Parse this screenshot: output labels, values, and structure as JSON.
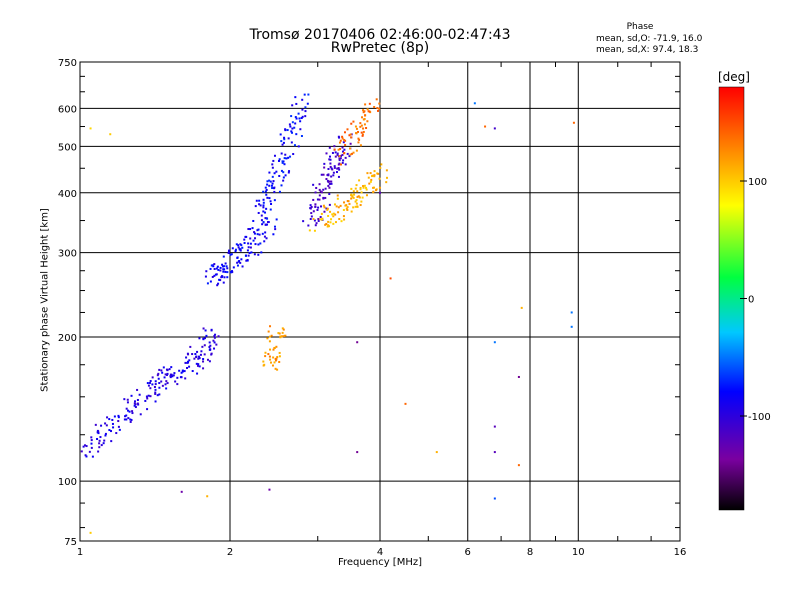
{
  "chart_data": {
    "type": "scatter",
    "title": "Tromsø 20170406 02:46:00-02:47:43",
    "subtitle": "RwPretec (8p)",
    "xlabel": "Frequency [MHz]",
    "ylabel": "Stationary phase Virtual Height [km]",
    "xscale": "log",
    "yscale": "log",
    "xlim": [
      1,
      16
    ],
    "ylim": [
      75,
      750
    ],
    "xticks": [
      1,
      2,
      4,
      6,
      8,
      10,
      16
    ],
    "xtick_labels": [
      "1",
      "2",
      "4",
      "6",
      "8",
      "10",
      "16"
    ],
    "yticks": [
      75,
      100,
      200,
      300,
      400,
      500,
      600,
      750
    ],
    "ytick_labels": [
      "75",
      "100",
      "200",
      "300",
      "400",
      "500",
      "600",
      "750"
    ],
    "grid": true,
    "phase_stats": {
      "header": "Phase",
      "o_mode": "mean, sd,O: -71.9, 16.0",
      "x_mode": "mean, sd,X:  97.4, 18.3"
    },
    "colorbar": {
      "label": "[deg]",
      "range": [
        -180,
        180
      ],
      "ticks": [
        100,
        0,
        -100
      ],
      "tick_labels": [
        "100",
        "0",
        "-100"
      ]
    },
    "series": [
      {
        "traces": [
          {
            "x": [
              1.02,
              1.1,
              1.2,
              1.3,
              1.4,
              1.5,
              1.6,
              1.7,
              1.8,
              1.85
            ],
            "y": [
              115,
              125,
              135,
              145,
              155,
              165,
              170,
              180,
              190,
              205
            ],
            "phase": -95
          },
          {
            "x": [
              1.85,
              1.9,
              2.0,
              2.1,
              2.2,
              2.3,
              2.4
            ],
            "y": [
              265,
              272,
              285,
              298,
              310,
              330,
              345
            ],
            "phase": -85
          },
          {
            "x": [
              2.3,
              2.4,
              2.5,
              2.6,
              2.7,
              2.8
            ],
            "y": [
              370,
              400,
              440,
              490,
              550,
              620
            ],
            "phase": -80
          },
          {
            "x": [
              2.9,
              3.0,
              3.1,
              3.2,
              3.3,
              3.4
            ],
            "y": [
              350,
              380,
              410,
              440,
              480,
              520
            ],
            "phase": -110
          },
          {
            "x": [
              3.0,
              3.2,
              3.4,
              3.6,
              3.8,
              4.0
            ],
            "y": [
              340,
              360,
              380,
              400,
              420,
              440
            ],
            "phase": 110
          },
          {
            "x": [
              3.3,
              3.5,
              3.7,
              3.9
            ],
            "y": [
              480,
              520,
              560,
              620
            ],
            "phase": 135
          },
          {
            "x": [
              2.4,
              2.45,
              2.5
            ],
            "y": [
              175,
              190,
              205
            ],
            "phase": 120
          }
        ],
        "scattered_points": [
          {
            "x": 1.05,
            "y": 78,
            "phase": 100
          },
          {
            "x": 1.05,
            "y": 545,
            "phase": 95
          },
          {
            "x": 1.15,
            "y": 530,
            "phase": 100
          },
          {
            "x": 1.6,
            "y": 95,
            "phase": -130
          },
          {
            "x": 1.8,
            "y": 93,
            "phase": 110
          },
          {
            "x": 2.4,
            "y": 96,
            "phase": -130
          },
          {
            "x": 3.6,
            "y": 195,
            "phase": -140
          },
          {
            "x": 3.6,
            "y": 115,
            "phase": -140
          },
          {
            "x": 4.5,
            "y": 145,
            "phase": 140
          },
          {
            "x": 5.2,
            "y": 115,
            "phase": 110
          },
          {
            "x": 6.2,
            "y": 615,
            "phase": -50
          },
          {
            "x": 6.5,
            "y": 550,
            "phase": 140
          },
          {
            "x": 6.8,
            "y": 545,
            "phase": -110
          },
          {
            "x": 6.8,
            "y": 195,
            "phase": -50
          },
          {
            "x": 6.8,
            "y": 130,
            "phase": -120
          },
          {
            "x": 6.8,
            "y": 115,
            "phase": -120
          },
          {
            "x": 6.8,
            "y": 92,
            "phase": -60
          },
          {
            "x": 7.6,
            "y": 165,
            "phase": -140
          },
          {
            "x": 7.6,
            "y": 108,
            "phase": 140
          },
          {
            "x": 7.7,
            "y": 230,
            "phase": 110
          },
          {
            "x": 9.7,
            "y": 225,
            "phase": -50
          },
          {
            "x": 9.7,
            "y": 210,
            "phase": -50
          },
          {
            "x": 9.8,
            "y": 560,
            "phase": 140
          },
          {
            "x": 4.0,
            "y": 400,
            "phase": -120
          },
          {
            "x": 4.2,
            "y": 265,
            "phase": 150
          }
        ]
      }
    ]
  }
}
